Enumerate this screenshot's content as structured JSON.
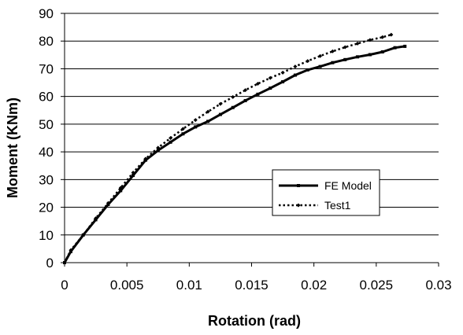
{
  "chart_data": {
    "type": "line",
    "title": "",
    "xlabel": "Rotation (rad)",
    "ylabel": "Moment (KNm)",
    "xlim": [
      0,
      0.03
    ],
    "ylim": [
      0,
      90
    ],
    "x_ticks": [
      0,
      0.005,
      0.01,
      0.015,
      0.02,
      0.025,
      0.03
    ],
    "x_tick_labels": [
      "0",
      "0.005",
      "0.01",
      "0.015",
      "0.02",
      "0.025",
      "0.03"
    ],
    "y_ticks": [
      0,
      10,
      20,
      30,
      40,
      50,
      60,
      70,
      80,
      90
    ],
    "y_tick_labels": [
      "0",
      "10",
      "20",
      "30",
      "40",
      "50",
      "60",
      "70",
      "80",
      "90"
    ],
    "grid": "horizontal",
    "legend_position": "right",
    "series": [
      {
        "name": "FE Model",
        "line_style": "solid",
        "marker": "square",
        "color": "#000000",
        "x": [
          0,
          0.0005,
          0.0015,
          0.0025,
          0.0035,
          0.0045,
          0.0055,
          0.0065,
          0.0075,
          0.0085,
          0.0095,
          0.0105,
          0.0115,
          0.0125,
          0.0135,
          0.0145,
          0.0155,
          0.0165,
          0.0175,
          0.0185,
          0.0195,
          0.0205,
          0.0215,
          0.0225,
          0.0235,
          0.0245,
          0.0255,
          0.0265,
          0.0273
        ],
        "y": [
          0,
          4,
          10,
          15.5,
          21,
          26,
          31.5,
          37,
          40.5,
          43.5,
          46.5,
          49,
          51,
          53.5,
          56,
          58.5,
          60.8,
          63,
          65.3,
          67.7,
          69.6,
          70.8,
          72.2,
          73.3,
          74.3,
          75.1,
          76.1,
          77.6,
          78.1
        ]
      },
      {
        "name": "Test1",
        "line_style": "dotted",
        "marker": "diamond",
        "color": "#000000",
        "x": [
          0,
          0.0005,
          0.0015,
          0.0025,
          0.0035,
          0.0045,
          0.0055,
          0.0065,
          0.0075,
          0.0085,
          0.0095,
          0.0105,
          0.0115,
          0.0125,
          0.0135,
          0.0145,
          0.0155,
          0.0165,
          0.0175,
          0.0185,
          0.0195,
          0.0205,
          0.0215,
          0.0225,
          0.0235,
          0.0245,
          0.0255,
          0.0262
        ],
        "y": [
          0,
          4.5,
          10,
          16,
          21.5,
          27,
          32.5,
          37.5,
          41.5,
          45,
          48.3,
          51.5,
          54.5,
          57.3,
          59.8,
          62.3,
          64.6,
          66.7,
          68.6,
          70.8,
          72.8,
          74.6,
          76.3,
          77.8,
          79.1,
          80.4,
          81.4,
          82.3
        ]
      }
    ]
  }
}
